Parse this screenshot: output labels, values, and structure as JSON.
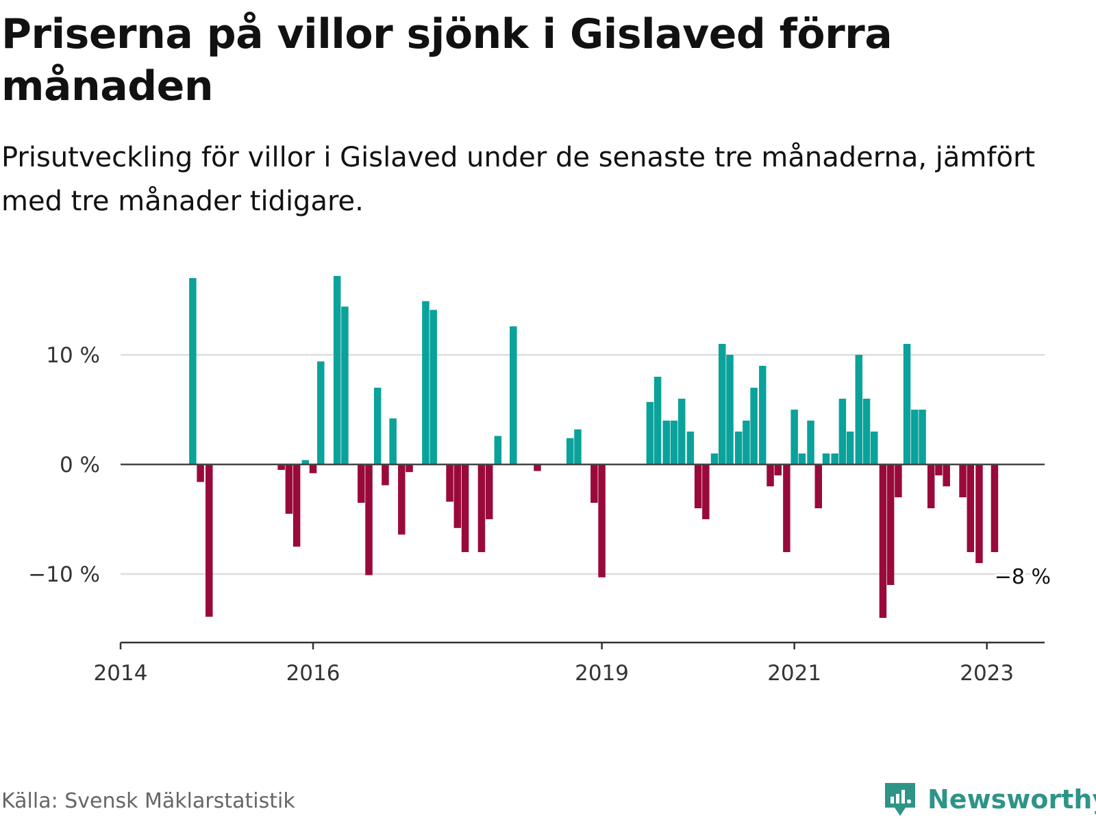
{
  "title": "Priserna på villor sjönk i Gislaved förra månaden",
  "subtitle": "Prisutveckling för villor i Gislaved under de senaste tre månaderna, jämfört med tre månader tidigare.",
  "source": "Källa: Svensk Mäklarstatistik",
  "brand": {
    "name": "Newsworthy",
    "logo_icon": "newsworthy-logo-icon"
  },
  "colors": {
    "positive": "#0aa29b",
    "negative": "#990a3a",
    "gridline": "#dddddd",
    "axis": "#333333",
    "zero_line": "#444444"
  },
  "chart_data": {
    "type": "bar",
    "title": "Priserna på villor sjönk i Gislaved förra månaden",
    "xlabel": "",
    "ylabel": "",
    "x_domain": [
      2014.0,
      2023.6
    ],
    "ylim": [
      -16,
      18
    ],
    "yticks": [
      {
        "value": 10,
        "label": "10 %"
      },
      {
        "value": 0,
        "label": "0 %"
      },
      {
        "value": -10,
        "label": "−10 %"
      }
    ],
    "xticks": [
      {
        "value": 2014,
        "label": "2014"
      },
      {
        "value": 2016,
        "label": "2016"
      },
      {
        "value": 2019,
        "label": "2019"
      },
      {
        "value": 2021,
        "label": "2021"
      },
      {
        "value": 2023,
        "label": "2023"
      }
    ],
    "series": [
      {
        "name": "Prisutveckling",
        "points": [
          {
            "x": 2014.75,
            "y": 17.0
          },
          {
            "x": 2014.83,
            "y": -1.6
          },
          {
            "x": 2014.92,
            "y": -13.9
          },
          {
            "x": 2015.67,
            "y": -0.5
          },
          {
            "x": 2015.75,
            "y": -4.5
          },
          {
            "x": 2015.83,
            "y": -7.5
          },
          {
            "x": 2015.92,
            "y": 0.4
          },
          {
            "x": 2016.0,
            "y": -0.8
          },
          {
            "x": 2016.08,
            "y": 9.4
          },
          {
            "x": 2016.25,
            "y": 17.2
          },
          {
            "x": 2016.33,
            "y": 14.4
          },
          {
            "x": 2016.5,
            "y": -3.5
          },
          {
            "x": 2016.58,
            "y": -10.1
          },
          {
            "x": 2016.67,
            "y": 7.0
          },
          {
            "x": 2016.75,
            "y": -1.9
          },
          {
            "x": 2016.83,
            "y": 4.2
          },
          {
            "x": 2016.92,
            "y": -6.4
          },
          {
            "x": 2017.0,
            "y": -0.7
          },
          {
            "x": 2017.17,
            "y": 14.9
          },
          {
            "x": 2017.25,
            "y": 14.1
          },
          {
            "x": 2017.42,
            "y": -3.4
          },
          {
            "x": 2017.5,
            "y": -5.8
          },
          {
            "x": 2017.58,
            "y": -8.0
          },
          {
            "x": 2017.75,
            "y": -8.0
          },
          {
            "x": 2017.83,
            "y": -5.0
          },
          {
            "x": 2017.92,
            "y": 2.6
          },
          {
            "x": 2018.08,
            "y": 12.6
          },
          {
            "x": 2018.33,
            "y": -0.6
          },
          {
            "x": 2018.67,
            "y": 2.4
          },
          {
            "x": 2018.75,
            "y": 3.2
          },
          {
            "x": 2018.92,
            "y": -3.5
          },
          {
            "x": 2019.0,
            "y": -10.3
          },
          {
            "x": 2019.5,
            "y": 5.7
          },
          {
            "x": 2019.58,
            "y": 8.0
          },
          {
            "x": 2019.67,
            "y": 4.0
          },
          {
            "x": 2019.75,
            "y": 4.0
          },
          {
            "x": 2019.83,
            "y": 6.0
          },
          {
            "x": 2019.92,
            "y": 3.0
          },
          {
            "x": 2020.0,
            "y": -4.0
          },
          {
            "x": 2020.08,
            "y": -5.0
          },
          {
            "x": 2020.17,
            "y": 1.0
          },
          {
            "x": 2020.25,
            "y": 11.0
          },
          {
            "x": 2020.33,
            "y": 10.0
          },
          {
            "x": 2020.42,
            "y": 3.0
          },
          {
            "x": 2020.5,
            "y": 4.0
          },
          {
            "x": 2020.58,
            "y": 7.0
          },
          {
            "x": 2020.67,
            "y": 9.0
          },
          {
            "x": 2020.75,
            "y": -2.0
          },
          {
            "x": 2020.83,
            "y": -1.0
          },
          {
            "x": 2020.92,
            "y": -8.0
          },
          {
            "x": 2021.0,
            "y": 5.0
          },
          {
            "x": 2021.08,
            "y": 1.0
          },
          {
            "x": 2021.17,
            "y": 4.0
          },
          {
            "x": 2021.25,
            "y": -4.0
          },
          {
            "x": 2021.33,
            "y": 1.0
          },
          {
            "x": 2021.42,
            "y": 1.0
          },
          {
            "x": 2021.5,
            "y": 6.0
          },
          {
            "x": 2021.58,
            "y": 3.0
          },
          {
            "x": 2021.67,
            "y": 10.0
          },
          {
            "x": 2021.75,
            "y": 6.0
          },
          {
            "x": 2021.83,
            "y": 3.0
          },
          {
            "x": 2021.92,
            "y": -14.0
          },
          {
            "x": 2022.0,
            "y": -11.0
          },
          {
            "x": 2022.08,
            "y": -3.0
          },
          {
            "x": 2022.17,
            "y": 11.0
          },
          {
            "x": 2022.25,
            "y": 5.0
          },
          {
            "x": 2022.33,
            "y": 5.0
          },
          {
            "x": 2022.42,
            "y": -4.0
          },
          {
            "x": 2022.5,
            "y": -1.0
          },
          {
            "x": 2022.58,
            "y": -2.0
          },
          {
            "x": 2022.75,
            "y": -3.0
          },
          {
            "x": 2022.83,
            "y": -8.0
          },
          {
            "x": 2022.92,
            "y": -9.0
          },
          {
            "x": 2023.08,
            "y": -8.0
          }
        ]
      }
    ],
    "annotation": {
      "x": 2023.08,
      "y": -8.0,
      "label": "−8 %"
    }
  }
}
